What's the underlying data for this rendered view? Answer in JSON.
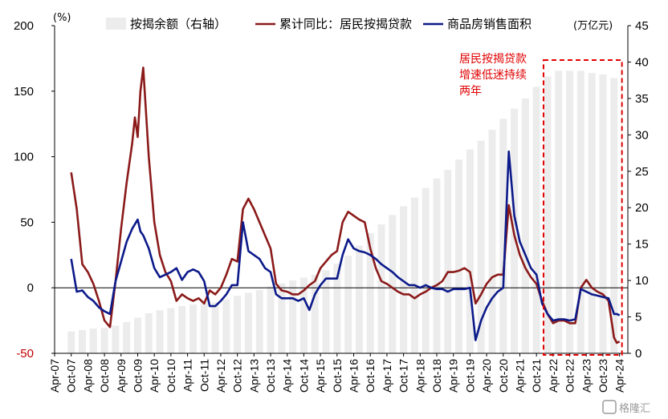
{
  "chart_data": {
    "type": "bar+line",
    "title": "",
    "left_axis": {
      "unit": "(%)",
      "range": [
        -50,
        200
      ],
      "ticks": [
        -50,
        0,
        50,
        100,
        150,
        200
      ]
    },
    "right_axis": {
      "unit": "(万亿元)",
      "range": [
        0,
        45
      ],
      "ticks": [
        0,
        5,
        10,
        15,
        20,
        25,
        30,
        35,
        40,
        45
      ]
    },
    "x_ticks": [
      "Apr-07",
      "Oct-07",
      "Apr-08",
      "Oct-08",
      "Apr-09",
      "Oct-09",
      "Apr-10",
      "Oct-10",
      "Apr-11",
      "Oct-11",
      "Apr-12",
      "Oct-12",
      "Apr-13",
      "Oct-13",
      "Apr-14",
      "Oct-14",
      "Apr-15",
      "Oct-15",
      "Apr-16",
      "Oct-16",
      "Apr-17",
      "Oct-17",
      "Apr-18",
      "Oct-18",
      "Apr-19",
      "Oct-19",
      "Apr-20",
      "Oct-20",
      "Apr-21",
      "Oct-21",
      "Apr-22",
      "Oct-22",
      "Apr-23",
      "Oct-23",
      "Apr-24"
    ],
    "series": [
      {
        "name": "按揭余额（右轴）",
        "kind": "bar",
        "axis": "right",
        "color": "#ececec",
        "points": [
          [
            "2007-10",
            3.0
          ],
          [
            "2008-02",
            3.2
          ],
          [
            "2008-06",
            3.4
          ],
          [
            "2008-10",
            3.5
          ],
          [
            "2009-02",
            3.8
          ],
          [
            "2009-06",
            4.3
          ],
          [
            "2009-10",
            4.9
          ],
          [
            "2010-02",
            5.5
          ],
          [
            "2010-06",
            5.9
          ],
          [
            "2010-10",
            6.2
          ],
          [
            "2011-02",
            6.5
          ],
          [
            "2011-06",
            6.7
          ],
          [
            "2011-10",
            6.9
          ],
          [
            "2012-02",
            7.0
          ],
          [
            "2012-06",
            7.4
          ],
          [
            "2012-10",
            7.9
          ],
          [
            "2013-02",
            8.3
          ],
          [
            "2013-06",
            8.7
          ],
          [
            "2013-10",
            9.2
          ],
          [
            "2014-02",
            9.6
          ],
          [
            "2014-06",
            10.0
          ],
          [
            "2014-10",
            10.4
          ],
          [
            "2015-02",
            10.8
          ],
          [
            "2015-06",
            11.4
          ],
          [
            "2015-10",
            12.3
          ],
          [
            "2016-02",
            13.4
          ],
          [
            "2016-06",
            14.8
          ],
          [
            "2016-10",
            16.5
          ],
          [
            "2017-02",
            17.7
          ],
          [
            "2017-06",
            19.0
          ],
          [
            "2017-10",
            20.2
          ],
          [
            "2018-02",
            21.4
          ],
          [
            "2018-06",
            22.7
          ],
          [
            "2018-10",
            24.0
          ],
          [
            "2019-02",
            25.2
          ],
          [
            "2019-06",
            26.6
          ],
          [
            "2019-10",
            28.0
          ],
          [
            "2020-02",
            29.2
          ],
          [
            "2020-06",
            30.7
          ],
          [
            "2020-10",
            32.2
          ],
          [
            "2021-02",
            33.6
          ],
          [
            "2021-06",
            35.0
          ],
          [
            "2021-10",
            36.6
          ],
          [
            "2022-02",
            38.0
          ],
          [
            "2022-06",
            38.8
          ],
          [
            "2022-10",
            38.8
          ],
          [
            "2023-02",
            38.8
          ],
          [
            "2023-06",
            38.5
          ],
          [
            "2023-10",
            38.3
          ],
          [
            "2024-02",
            37.8
          ]
        ]
      },
      {
        "name": "累计同比：居民按揭贷款",
        "kind": "line",
        "axis": "left",
        "color": "#8b1a1a",
        "points": [
          [
            "2007-10",
            88
          ],
          [
            "2007-12",
            60
          ],
          [
            "2008-02",
            18
          ],
          [
            "2008-04",
            12
          ],
          [
            "2008-06",
            3
          ],
          [
            "2008-08",
            -10
          ],
          [
            "2008-10",
            -25
          ],
          [
            "2008-12",
            -30
          ],
          [
            "2009-02",
            5
          ],
          [
            "2009-04",
            45
          ],
          [
            "2009-06",
            80
          ],
          [
            "2009-08",
            110
          ],
          [
            "2009-09",
            130
          ],
          [
            "2009-10",
            115
          ],
          [
            "2009-11",
            150
          ],
          [
            "2009-12",
            168
          ],
          [
            "2010-02",
            100
          ],
          [
            "2010-04",
            50
          ],
          [
            "2010-06",
            25
          ],
          [
            "2010-08",
            12
          ],
          [
            "2010-10",
            5
          ],
          [
            "2010-12",
            -10
          ],
          [
            "2011-02",
            -5
          ],
          [
            "2011-04",
            -8
          ],
          [
            "2011-06",
            -10
          ],
          [
            "2011-08",
            -8
          ],
          [
            "2011-10",
            -12
          ],
          [
            "2011-12",
            -2
          ],
          [
            "2012-02",
            -5
          ],
          [
            "2012-04",
            0
          ],
          [
            "2012-06",
            10
          ],
          [
            "2012-08",
            22
          ],
          [
            "2012-10",
            20
          ],
          [
            "2012-12",
            60
          ],
          [
            "2013-02",
            68
          ],
          [
            "2013-04",
            60
          ],
          [
            "2013-06",
            50
          ],
          [
            "2013-08",
            40
          ],
          [
            "2013-10",
            30
          ],
          [
            "2013-12",
            3
          ],
          [
            "2014-02",
            -2
          ],
          [
            "2014-04",
            -3
          ],
          [
            "2014-06",
            -5
          ],
          [
            "2014-08",
            -5
          ],
          [
            "2014-10",
            -2
          ],
          [
            "2014-12",
            2
          ],
          [
            "2015-02",
            5
          ],
          [
            "2015-04",
            15
          ],
          [
            "2015-06",
            20
          ],
          [
            "2015-08",
            25
          ],
          [
            "2015-10",
            28
          ],
          [
            "2015-12",
            50
          ],
          [
            "2016-02",
            58
          ],
          [
            "2016-04",
            55
          ],
          [
            "2016-06",
            52
          ],
          [
            "2016-08",
            50
          ],
          [
            "2016-10",
            30
          ],
          [
            "2016-12",
            15
          ],
          [
            "2017-02",
            5
          ],
          [
            "2017-04",
            3
          ],
          [
            "2017-06",
            0
          ],
          [
            "2017-08",
            -3
          ],
          [
            "2017-10",
            -5
          ],
          [
            "2017-12",
            -5
          ],
          [
            "2018-02",
            -8
          ],
          [
            "2018-04",
            -5
          ],
          [
            "2018-06",
            -3
          ],
          [
            "2018-08",
            0
          ],
          [
            "2018-10",
            2
          ],
          [
            "2018-12",
            5
          ],
          [
            "2019-02",
            12
          ],
          [
            "2019-04",
            12
          ],
          [
            "2019-06",
            13
          ],
          [
            "2019-08",
            15
          ],
          [
            "2019-10",
            12
          ],
          [
            "2019-12",
            -12
          ],
          [
            "2020-02",
            -5
          ],
          [
            "2020-04",
            3
          ],
          [
            "2020-06",
            8
          ],
          [
            "2020-08",
            10
          ],
          [
            "2020-10",
            10
          ],
          [
            "2020-12",
            63
          ],
          [
            "2021-02",
            40
          ],
          [
            "2021-04",
            25
          ],
          [
            "2021-06",
            15
          ],
          [
            "2021-08",
            8
          ],
          [
            "2021-10",
            3
          ],
          [
            "2021-12",
            -10
          ],
          [
            "2022-02",
            -20
          ],
          [
            "2022-04",
            -27
          ],
          [
            "2022-06",
            -25
          ],
          [
            "2022-08",
            -25
          ],
          [
            "2022-10",
            -27
          ],
          [
            "2022-12",
            -27
          ],
          [
            "2023-02",
            0
          ],
          [
            "2023-04",
            6
          ],
          [
            "2023-06",
            0
          ],
          [
            "2023-08",
            -3
          ],
          [
            "2023-10",
            -5
          ],
          [
            "2023-12",
            -10
          ],
          [
            "2024-02",
            -38
          ],
          [
            "2024-03",
            -42
          ],
          [
            "2024-04",
            -41
          ]
        ]
      },
      {
        "name": "商品房销售面积",
        "kind": "line",
        "axis": "left",
        "color": "#0c1a8a",
        "points": [
          [
            "2007-10",
            22
          ],
          [
            "2007-12",
            -3
          ],
          [
            "2008-02",
            -2
          ],
          [
            "2008-04",
            -7
          ],
          [
            "2008-06",
            -10
          ],
          [
            "2008-08",
            -15
          ],
          [
            "2008-10",
            -18
          ],
          [
            "2008-12",
            -20
          ],
          [
            "2009-02",
            5
          ],
          [
            "2009-04",
            20
          ],
          [
            "2009-06",
            35
          ],
          [
            "2009-08",
            45
          ],
          [
            "2009-10",
            52
          ],
          [
            "2009-11",
            43
          ],
          [
            "2009-12",
            40
          ],
          [
            "2010-02",
            30
          ],
          [
            "2010-04",
            15
          ],
          [
            "2010-06",
            8
          ],
          [
            "2010-08",
            10
          ],
          [
            "2010-10",
            12
          ],
          [
            "2010-12",
            15
          ],
          [
            "2011-02",
            6
          ],
          [
            "2011-04",
            12
          ],
          [
            "2011-06",
            14
          ],
          [
            "2011-08",
            12
          ],
          [
            "2011-10",
            5
          ],
          [
            "2011-12",
            -14
          ],
          [
            "2012-02",
            -14
          ],
          [
            "2012-04",
            -10
          ],
          [
            "2012-06",
            -5
          ],
          [
            "2012-08",
            2
          ],
          [
            "2012-10",
            2
          ],
          [
            "2012-12",
            50
          ],
          [
            "2013-02",
            28
          ],
          [
            "2013-04",
            25
          ],
          [
            "2013-06",
            22
          ],
          [
            "2013-08",
            15
          ],
          [
            "2013-10",
            12
          ],
          [
            "2013-12",
            -5
          ],
          [
            "2014-02",
            -8
          ],
          [
            "2014-04",
            -8
          ],
          [
            "2014-06",
            -8
          ],
          [
            "2014-08",
            -10
          ],
          [
            "2014-10",
            -8
          ],
          [
            "2014-12",
            -17
          ],
          [
            "2015-02",
            -5
          ],
          [
            "2015-04",
            2
          ],
          [
            "2015-06",
            7
          ],
          [
            "2015-08",
            7
          ],
          [
            "2015-10",
            7
          ],
          [
            "2015-12",
            25
          ],
          [
            "2016-02",
            37
          ],
          [
            "2016-04",
            30
          ],
          [
            "2016-06",
            28
          ],
          [
            "2016-08",
            27
          ],
          [
            "2016-10",
            25
          ],
          [
            "2016-12",
            22
          ],
          [
            "2017-02",
            18
          ],
          [
            "2017-04",
            15
          ],
          [
            "2017-06",
            12
          ],
          [
            "2017-08",
            8
          ],
          [
            "2017-10",
            5
          ],
          [
            "2017-12",
            2
          ],
          [
            "2018-02",
            2
          ],
          [
            "2018-04",
            0
          ],
          [
            "2018-06",
            2
          ],
          [
            "2018-08",
            0
          ],
          [
            "2018-10",
            -1
          ],
          [
            "2018-12",
            -1
          ],
          [
            "2019-02",
            -3
          ],
          [
            "2019-04",
            -1
          ],
          [
            "2019-06",
            -1
          ],
          [
            "2019-08",
            -1
          ],
          [
            "2019-10",
            0
          ],
          [
            "2019-12",
            -40
          ],
          [
            "2020-02",
            -25
          ],
          [
            "2020-04",
            -15
          ],
          [
            "2020-06",
            -8
          ],
          [
            "2020-08",
            -3
          ],
          [
            "2020-10",
            0
          ],
          [
            "2020-12",
            104
          ],
          [
            "2021-02",
            55
          ],
          [
            "2021-04",
            35
          ],
          [
            "2021-06",
            25
          ],
          [
            "2021-08",
            15
          ],
          [
            "2021-10",
            10
          ],
          [
            "2021-12",
            -12
          ],
          [
            "2022-02",
            -20
          ],
          [
            "2022-04",
            -25
          ],
          [
            "2022-06",
            -24
          ],
          [
            "2022-08",
            -24
          ],
          [
            "2022-10",
            -25
          ],
          [
            "2022-12",
            -24
          ],
          [
            "2023-02",
            -1
          ],
          [
            "2023-04",
            -3
          ],
          [
            "2023-06",
            -5
          ],
          [
            "2023-08",
            -6
          ],
          [
            "2023-10",
            -7
          ],
          [
            "2023-12",
            -8
          ],
          [
            "2024-02",
            -20
          ],
          [
            "2024-03",
            -20
          ],
          [
            "2024-04",
            -21
          ]
        ]
      }
    ],
    "highlight": {
      "from": "2022-02",
      "to": "2024-04",
      "style": "red dashed box"
    },
    "annotation": [
      "居民按揭贷款",
      "增速低迷持续",
      "两年"
    ]
  },
  "watermark": "格隆汇"
}
